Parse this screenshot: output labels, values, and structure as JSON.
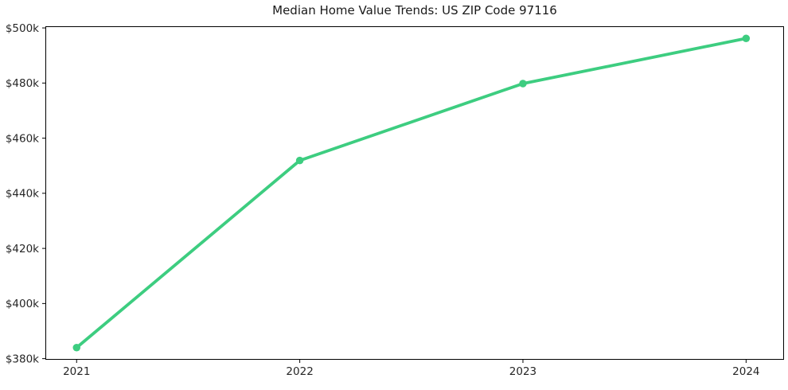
{
  "figure": {
    "background_color": "#ffffff",
    "frame_color": "#000000",
    "tick_text_color": "#262626",
    "title_color": "#1a1a1a"
  },
  "chart_data": {
    "type": "line",
    "title": "Median Home Value Trends: US ZIP Code 97116",
    "xlabel": "",
    "ylabel": "",
    "x": [
      2021,
      2022,
      2023,
      2024
    ],
    "x_tick_labels": [
      "2021",
      "2022",
      "2023",
      "2024"
    ],
    "series": [
      {
        "name": "median-home-value",
        "values_usd": [
          384000,
          451900,
          479800,
          496200
        ],
        "color": "#3dcd80",
        "line_width": 3.8,
        "marker": "circle",
        "marker_radius": 4.75
      }
    ],
    "y_ticks_usd": [
      380000,
      400000,
      420000,
      440000,
      460000,
      480000,
      500000
    ],
    "y_tick_labels": [
      "$380k",
      "$400k",
      "$420k",
      "$440k",
      "$460k",
      "$480k",
      "$500k"
    ],
    "xlim": [
      2020.86,
      2024.17
    ],
    "ylim_usd": [
      379600,
      500600
    ],
    "grid": false,
    "legend": "none"
  }
}
